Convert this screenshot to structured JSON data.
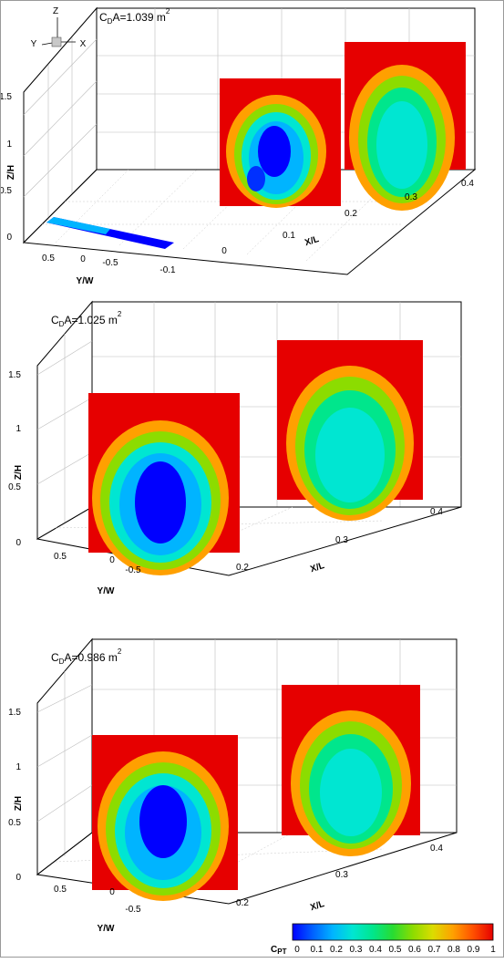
{
  "chart_data": [
    {
      "type": "heatmap",
      "title_main": "C",
      "title_sub": "D",
      "title_rest": "A=1.039 m",
      "title_sup": "2",
      "orientation": {
        "z": "Z",
        "y": "Y",
        "x": "X"
      },
      "zlabel": "Z/H",
      "ylabel": "Y/W",
      "xlabel": "X/L",
      "zticks": [
        "0",
        "0.5",
        "1",
        "1.5"
      ],
      "yticks": [
        "0.5",
        "0",
        "-0.5"
      ],
      "xticks": [
        "-0.1",
        "0",
        "0.1",
        "0.2",
        "0.3",
        "0.4"
      ],
      "zlim": [
        0,
        1.6
      ],
      "ylim": [
        -0.7,
        0.7
      ],
      "xlim": [
        -0.12,
        0.42
      ],
      "grid": true,
      "planes": [
        {
          "plane": "floor",
          "x": -0.1,
          "value_range": [
            0,
            0.4
          ]
        },
        {
          "plane": "wake",
          "x": 0.2,
          "value_range": [
            0,
            1
          ]
        },
        {
          "plane": "wake",
          "x": 0.4,
          "value_range": [
            0.2,
            1
          ]
        }
      ]
    },
    {
      "type": "heatmap",
      "title_main": "C",
      "title_sub": "D",
      "title_rest": "A=1.025 m",
      "title_sup": "2",
      "zlabel": "Z/H",
      "ylabel": "Y/W",
      "xlabel": "X/L",
      "zticks": [
        "0",
        "0.5",
        "1",
        "1.5"
      ],
      "yticks": [
        "0.5",
        "0",
        "-0.5"
      ],
      "xticks": [
        "0.2",
        "0.3",
        "0.4"
      ],
      "zlim": [
        0,
        1.6
      ],
      "ylim": [
        -0.7,
        0.7
      ],
      "xlim": [
        0.18,
        0.42
      ],
      "grid": true,
      "planes": [
        {
          "plane": "wake",
          "x": 0.2,
          "value_range": [
            0.05,
            1
          ]
        },
        {
          "plane": "wake",
          "x": 0.4,
          "value_range": [
            0.25,
            1
          ]
        }
      ]
    },
    {
      "type": "heatmap",
      "title_main": "C",
      "title_sub": "D",
      "title_rest": "A=0.986 m",
      "title_sup": "2",
      "zlabel": "Z/H",
      "ylabel": "Y/W",
      "xlabel": "X/L",
      "zticks": [
        "0",
        "0.5",
        "1",
        "1.5"
      ],
      "yticks": [
        "0.5",
        "0",
        "-0.5"
      ],
      "xticks": [
        "0.2",
        "0.3",
        "0.4"
      ],
      "zlim": [
        0,
        1.6
      ],
      "ylim": [
        -0.7,
        0.7
      ],
      "xlim": [
        0.18,
        0.42
      ],
      "grid": true,
      "planes": [
        {
          "plane": "wake",
          "x": 0.2,
          "value_range": [
            0.05,
            1
          ]
        },
        {
          "plane": "wake",
          "x": 0.4,
          "value_range": [
            0.3,
            1
          ]
        }
      ]
    }
  ],
  "colorbar": {
    "label_main": "C",
    "label_sub": "PT",
    "ticks": [
      "0",
      "0.1",
      "0.2",
      "0.3",
      "0.4",
      "0.5",
      "0.6",
      "0.7",
      "0.8",
      "0.9",
      "1"
    ],
    "range": [
      0,
      1
    ],
    "colors": [
      "#0000ff",
      "#0060ff",
      "#00b4ff",
      "#00e6d2",
      "#00e68c",
      "#28dc32",
      "#8cdc00",
      "#dcdc00",
      "#ffa000",
      "#ff5000",
      "#e60000"
    ]
  }
}
